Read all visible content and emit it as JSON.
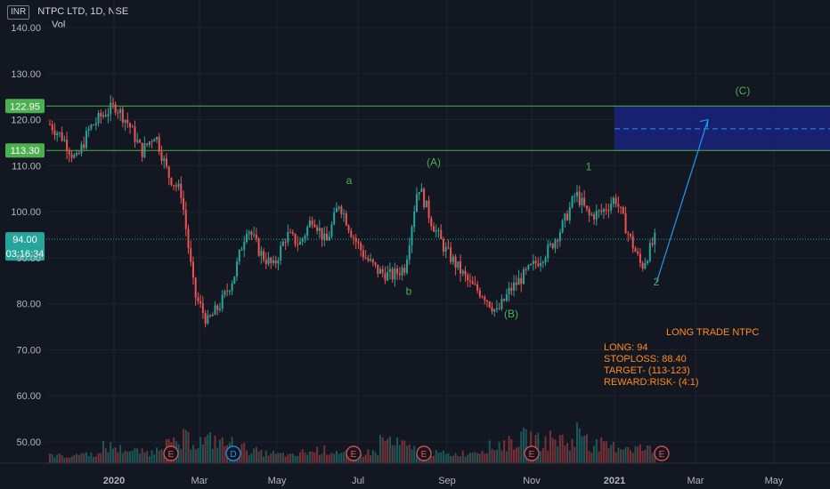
{
  "header": {
    "currency": "INR",
    "symbol_line": "NTPC LTD, 1D, NSE",
    "volume_label": "Vol"
  },
  "annotation": {
    "title": "LONG TRADE NTPC",
    "long": "LONG: 94",
    "stoploss": "STOPLOSS: 88.40",
    "target": "TARGET- (113-123)",
    "reward_risk": "REWARD:RISK- (4:1)"
  },
  "colors": {
    "background": "#131722",
    "grid": "#1e222d",
    "up": "#26a69a",
    "down": "#ef5350",
    "level_line": "#4caf50",
    "wave_label": "#4caf50",
    "target_box": "#1a237e",
    "arrow": "#2196f3",
    "annotation": "#ff8c1a"
  },
  "chart_data": {
    "type": "candlestick",
    "ylim": [
      45,
      144
    ],
    "xlabels": [
      "2020",
      "Mar",
      "May",
      "Jul",
      "Sep",
      "Nov",
      "2021",
      "Mar",
      "May"
    ],
    "yticks": [
      "140.00",
      "130.00",
      "120.00",
      "110.00",
      "100.00",
      "90.00",
      "80.00",
      "70.00",
      "60.00",
      "50.00"
    ],
    "price_levels": [
      {
        "label": "122.95",
        "value": 122.95
      },
      {
        "label": "113.30",
        "value": 113.3
      }
    ],
    "last_price": {
      "label": "94.00",
      "value": 94.0,
      "countdown": "03:16:34"
    },
    "wave_labels": [
      {
        "text": "a",
        "price": 106
      },
      {
        "text": "b",
        "price": 82
      },
      {
        "text": "(A)",
        "price": 110
      },
      {
        "text": "(B)",
        "price": 77
      },
      {
        "text": "1",
        "price": 109
      },
      {
        "text": "2",
        "price": 84
      },
      {
        "text": "(C)",
        "price": 125.5
      }
    ],
    "event_markers": [
      "E",
      "D",
      "E",
      "E",
      "E",
      "E"
    ],
    "path_points": [
      [
        119,
        119
      ],
      [
        116,
        116
      ],
      [
        111,
        111
      ],
      [
        118,
        118
      ],
      [
        121,
        121
      ],
      [
        123,
        123
      ],
      [
        119,
        119
      ],
      [
        113,
        113
      ],
      [
        117,
        117
      ],
      [
        108,
        108
      ],
      [
        104,
        104
      ],
      [
        82,
        82
      ],
      [
        76,
        76
      ],
      [
        80,
        80
      ],
      [
        86,
        86
      ],
      [
        97,
        97
      ],
      [
        91,
        91
      ],
      [
        88,
        88
      ],
      [
        95,
        95
      ],
      [
        93,
        93
      ],
      [
        99,
        99
      ],
      [
        93,
        93
      ],
      [
        102,
        102
      ],
      [
        95,
        95
      ],
      [
        90,
        90
      ],
      [
        87,
        87
      ],
      [
        86,
        86
      ],
      [
        88,
        88
      ],
      [
        106,
        106
      ],
      [
        98,
        98
      ],
      [
        92,
        92
      ],
      [
        88,
        88
      ],
      [
        84,
        84
      ],
      [
        82,
        82
      ],
      [
        78,
        78
      ],
      [
        83,
        83
      ],
      [
        86,
        86
      ],
      [
        89,
        89
      ],
      [
        92,
        92
      ],
      [
        97,
        97
      ],
      [
        104,
        104
      ],
      [
        99,
        99
      ],
      [
        100,
        100
      ],
      [
        103,
        103
      ],
      [
        95,
        95
      ],
      [
        88,
        88
      ],
      [
        94,
        94
      ]
    ],
    "volume_points": [
      20,
      15,
      30,
      25,
      60,
      50,
      40,
      35,
      80,
      70,
      95,
      85,
      90,
      75,
      55,
      40,
      30,
      25,
      20,
      35,
      45,
      40,
      30,
      25,
      35,
      90,
      70,
      50,
      40,
      30,
      25,
      30,
      45,
      60,
      75,
      90,
      100,
      85,
      95,
      80,
      130,
      70,
      60,
      65,
      55,
      50,
      40
    ]
  }
}
